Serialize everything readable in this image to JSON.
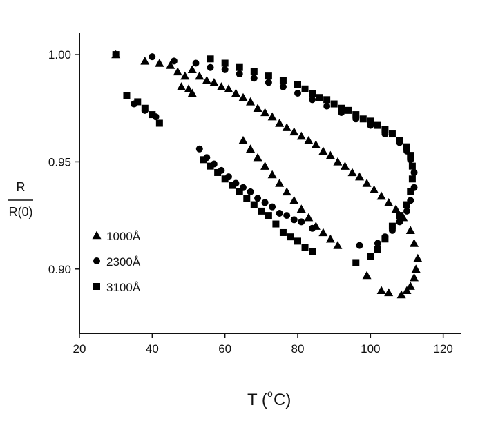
{
  "chart_data": {
    "type": "scatter",
    "xlabel_main": "T (",
    "xlabel_sup": "o",
    "xlabel_unit": "C)",
    "ylabel_top": "R",
    "ylabel_bottom": "R(0)",
    "xlim": [
      20,
      125
    ],
    "ylim": [
      0.87,
      1.01
    ],
    "x_ticks": [
      20,
      40,
      60,
      80,
      100,
      120
    ],
    "y_ticks": [
      0.9,
      0.95,
      1.0
    ],
    "y_tick_labels": [
      "0.90",
      "0.95",
      "1.00"
    ],
    "grid": false,
    "legend_position": "bottom-left",
    "series": [
      {
        "name": "1000Å",
        "marker": "triangle",
        "color": "#000000",
        "points": [
          [
            30,
            1.0
          ],
          [
            38,
            0.997
          ],
          [
            42,
            0.996
          ],
          [
            45,
            0.995
          ],
          [
            47,
            0.992
          ],
          [
            49,
            0.99
          ],
          [
            51,
            0.993
          ],
          [
            53,
            0.99
          ],
          [
            55,
            0.988
          ],
          [
            57,
            0.987
          ],
          [
            59,
            0.985
          ],
          [
            61,
            0.984
          ],
          [
            63,
            0.982
          ],
          [
            65,
            0.98
          ],
          [
            67,
            0.978
          ],
          [
            69,
            0.975
          ],
          [
            71,
            0.973
          ],
          [
            73,
            0.971
          ],
          [
            75,
            0.968
          ],
          [
            77,
            0.966
          ],
          [
            79,
            0.964
          ],
          [
            81,
            0.962
          ],
          [
            83,
            0.96
          ],
          [
            85,
            0.958
          ],
          [
            87,
            0.955
          ],
          [
            89,
            0.953
          ],
          [
            91,
            0.95
          ],
          [
            93,
            0.948
          ],
          [
            95,
            0.945
          ],
          [
            97,
            0.943
          ],
          [
            99,
            0.94
          ],
          [
            101,
            0.937
          ],
          [
            103,
            0.934
          ],
          [
            105,
            0.931
          ],
          [
            107,
            0.928
          ],
          [
            109,
            0.924
          ],
          [
            111,
            0.918
          ],
          [
            112,
            0.912
          ],
          [
            113,
            0.905
          ],
          [
            112.5,
            0.9
          ],
          [
            112,
            0.896
          ],
          [
            111,
            0.892
          ],
          [
            110,
            0.89
          ],
          [
            108.5,
            0.888
          ],
          [
            105,
            0.889
          ],
          [
            103,
            0.89
          ],
          [
            99,
            0.897
          ],
          [
            48,
            0.985
          ],
          [
            50,
            0.984
          ],
          [
            51,
            0.982
          ],
          [
            65,
            0.96
          ],
          [
            67,
            0.956
          ],
          [
            69,
            0.952
          ],
          [
            71,
            0.948
          ],
          [
            73,
            0.944
          ],
          [
            75,
            0.94
          ],
          [
            77,
            0.936
          ],
          [
            79,
            0.932
          ],
          [
            81,
            0.928
          ],
          [
            83,
            0.924
          ],
          [
            85,
            0.92
          ],
          [
            87,
            0.917
          ],
          [
            89,
            0.914
          ],
          [
            91,
            0.911
          ]
        ]
      },
      {
        "name": "2300Å",
        "marker": "circle",
        "color": "#000000",
        "points": [
          [
            30,
            1.0
          ],
          [
            40,
            0.999
          ],
          [
            46,
            0.997
          ],
          [
            52,
            0.996
          ],
          [
            56,
            0.994
          ],
          [
            60,
            0.993
          ],
          [
            64,
            0.991
          ],
          [
            68,
            0.989
          ],
          [
            72,
            0.987
          ],
          [
            76,
            0.985
          ],
          [
            80,
            0.982
          ],
          [
            84,
            0.979
          ],
          [
            88,
            0.976
          ],
          [
            92,
            0.973
          ],
          [
            96,
            0.97
          ],
          [
            100,
            0.967
          ],
          [
            104,
            0.963
          ],
          [
            108,
            0.959
          ],
          [
            110,
            0.955
          ],
          [
            111,
            0.951
          ],
          [
            112,
            0.945
          ],
          [
            112,
            0.938
          ],
          [
            111,
            0.932
          ],
          [
            110,
            0.927
          ],
          [
            108,
            0.922
          ],
          [
            106,
            0.918
          ],
          [
            104,
            0.915
          ],
          [
            102,
            0.912
          ],
          [
            97,
            0.911
          ],
          [
            35,
            0.977
          ],
          [
            38,
            0.974
          ],
          [
            41,
            0.971
          ],
          [
            53,
            0.956
          ],
          [
            55,
            0.952
          ],
          [
            57,
            0.949
          ],
          [
            59,
            0.946
          ],
          [
            61,
            0.943
          ],
          [
            63,
            0.94
          ],
          [
            65,
            0.938
          ],
          [
            67,
            0.936
          ],
          [
            69,
            0.933
          ],
          [
            71,
            0.931
          ],
          [
            73,
            0.929
          ],
          [
            75,
            0.926
          ],
          [
            77,
            0.925
          ],
          [
            79,
            0.923
          ],
          [
            81,
            0.922
          ],
          [
            84,
            0.919
          ]
        ]
      },
      {
        "name": "3100Å",
        "marker": "square",
        "color": "#000000",
        "points": [
          [
            30,
            1.0
          ],
          [
            56,
            0.998
          ],
          [
            60,
            0.996
          ],
          [
            64,
            0.994
          ],
          [
            68,
            0.992
          ],
          [
            72,
            0.99
          ],
          [
            76,
            0.988
          ],
          [
            80,
            0.986
          ],
          [
            82,
            0.984
          ],
          [
            84,
            0.982
          ],
          [
            86,
            0.98
          ],
          [
            88,
            0.979
          ],
          [
            90,
            0.977
          ],
          [
            92,
            0.975
          ],
          [
            94,
            0.974
          ],
          [
            96,
            0.972
          ],
          [
            98,
            0.97
          ],
          [
            100,
            0.969
          ],
          [
            102,
            0.967
          ],
          [
            104,
            0.965
          ],
          [
            106,
            0.963
          ],
          [
            108,
            0.96
          ],
          [
            110,
            0.957
          ],
          [
            111,
            0.953
          ],
          [
            111.5,
            0.948
          ],
          [
            111.5,
            0.942
          ],
          [
            111,
            0.936
          ],
          [
            110,
            0.93
          ],
          [
            108,
            0.925
          ],
          [
            106,
            0.92
          ],
          [
            104,
            0.914
          ],
          [
            102,
            0.909
          ],
          [
            100,
            0.906
          ],
          [
            96,
            0.903
          ],
          [
            33,
            0.981
          ],
          [
            36,
            0.978
          ],
          [
            38,
            0.975
          ],
          [
            40,
            0.972
          ],
          [
            42,
            0.968
          ],
          [
            54,
            0.951
          ],
          [
            56,
            0.948
          ],
          [
            58,
            0.945
          ],
          [
            60,
            0.942
          ],
          [
            62,
            0.939
          ],
          [
            64,
            0.936
          ],
          [
            66,
            0.933
          ],
          [
            68,
            0.93
          ],
          [
            70,
            0.927
          ],
          [
            72,
            0.925
          ],
          [
            74,
            0.921
          ],
          [
            76,
            0.917
          ],
          [
            78,
            0.915
          ],
          [
            80,
            0.913
          ],
          [
            82,
            0.91
          ],
          [
            84,
            0.908
          ]
        ]
      }
    ]
  }
}
